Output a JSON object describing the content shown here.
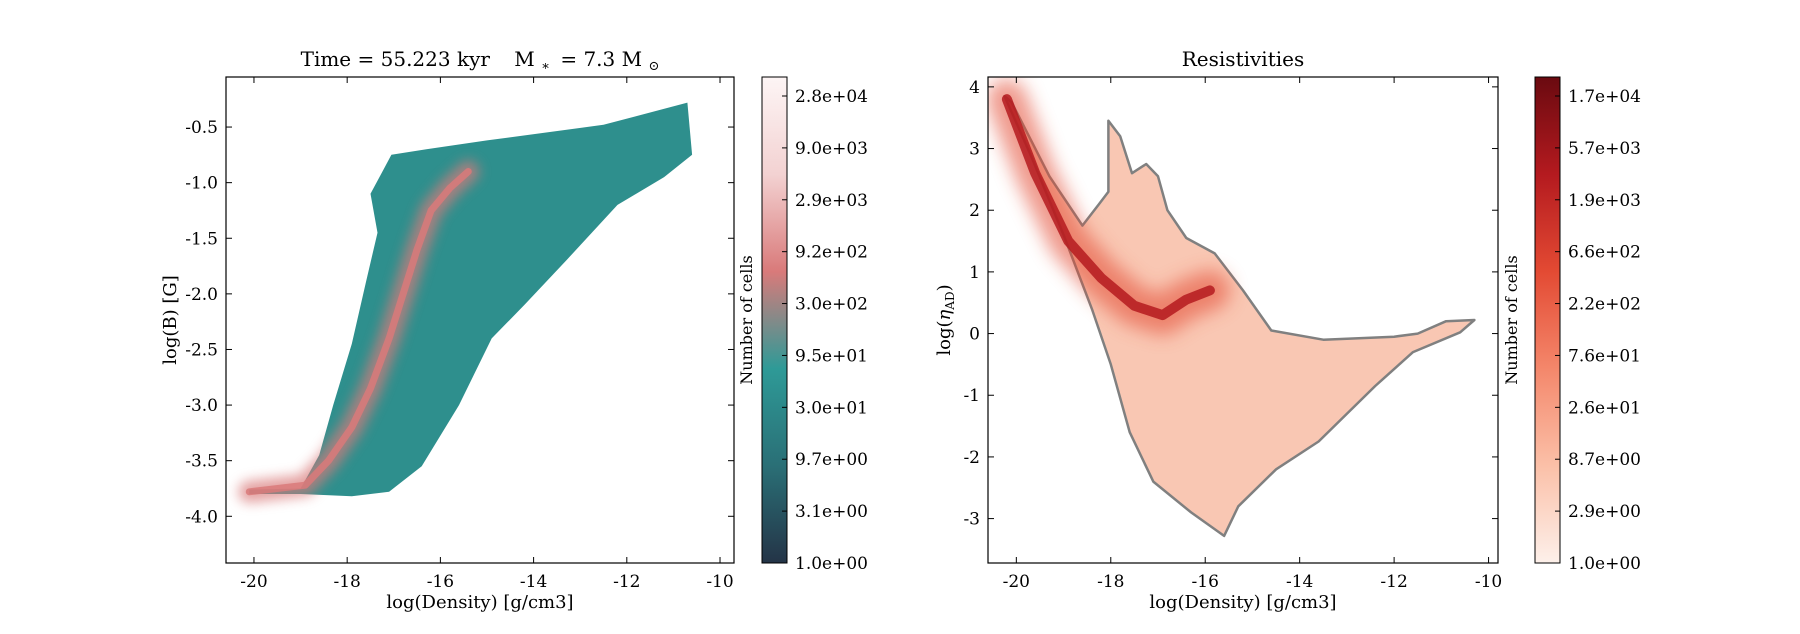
{
  "chart_data": [
    {
      "type": "heatmap",
      "title": "Time = 55.223 kyr    M$_*$ = 7.3 M$_\\odot$",
      "title_parts": {
        "prefix": "Time = 55.223 kyr",
        "mass_sym": "M",
        "mass_sub": "∗",
        "mass_value": "= 7.3 M",
        "mass_unit_sub": "⊙"
      },
      "xlabel": "log(Density) [g/cm3]",
      "ylabel": "log(B) [G]",
      "xlim": [
        -20.6,
        -9.7
      ],
      "ylim": [
        -4.42,
        -0.05
      ],
      "xticks": [
        -20,
        -18,
        -16,
        -14,
        -12,
        -10
      ],
      "yticks": [
        -4.0,
        -3.5,
        -3.0,
        -2.5,
        -2.0,
        -1.5,
        -1.0,
        -0.5
      ],
      "xtick_labels": [
        "-20",
        "-18",
        "-16",
        "-14",
        "-12",
        "-10"
      ],
      "ytick_labels": [
        "-4.0",
        "-3.5",
        "-3.0",
        "-2.5",
        "-2.0",
        "-1.5",
        "-1.0",
        "-0.5"
      ],
      "colormap": [
        "#243447",
        "#2a6f76",
        "#2e9a97",
        "#d97a7a",
        "#f3d2d2",
        "#fdf5f5"
      ],
      "base_color": "#2e8f8d",
      "colorbar": {
        "label": "Number of cells",
        "scale": "log",
        "range": [
          1,
          28000
        ],
        "tick_labels": [
          "1.0e+00",
          "3.1e+00",
          "9.7e+00",
          "3.0e+01",
          "9.5e+01",
          "3.0e+02",
          "9.2e+02",
          "2.9e+03",
          "9.0e+03",
          "2.8e+04"
        ]
      },
      "region_outline": [
        [
          -20.1,
          -3.76
        ],
        [
          -19.0,
          -3.75
        ],
        [
          -18.6,
          -3.45
        ],
        [
          -18.3,
          -3.0
        ],
        [
          -17.9,
          -2.45
        ],
        [
          -17.6,
          -1.9
        ],
        [
          -17.35,
          -1.45
        ],
        [
          -17.5,
          -1.1
        ],
        [
          -17.05,
          -0.75
        ],
        [
          -16.3,
          -0.7
        ],
        [
          -15.0,
          -0.62
        ],
        [
          -12.5,
          -0.48
        ],
        [
          -10.7,
          -0.28
        ],
        [
          -10.6,
          -0.75
        ],
        [
          -11.2,
          -0.95
        ],
        [
          -12.2,
          -1.2
        ],
        [
          -13.3,
          -1.7
        ],
        [
          -14.2,
          -2.1
        ],
        [
          -14.9,
          -2.4
        ],
        [
          -15.6,
          -3.0
        ],
        [
          -16.4,
          -3.55
        ],
        [
          -17.1,
          -3.78
        ],
        [
          -17.9,
          -3.82
        ],
        [
          -19.0,
          -3.8
        ],
        [
          -20.1,
          -3.8
        ]
      ],
      "ridge": [
        [
          -20.1,
          -3.78
        ],
        [
          -18.9,
          -3.72
        ],
        [
          -18.4,
          -3.5
        ],
        [
          -17.9,
          -3.2
        ],
        [
          -17.5,
          -2.85
        ],
        [
          -17.1,
          -2.4
        ],
        [
          -16.8,
          -2.0
        ],
        [
          -16.5,
          -1.6
        ],
        [
          -16.2,
          -1.25
        ],
        [
          -15.8,
          -1.05
        ],
        [
          -15.4,
          -0.9
        ]
      ]
    },
    {
      "type": "heatmap",
      "title": "Resistivities",
      "xlabel": "log(Density) [g/cm3]",
      "ylabel": "log(η_AD)",
      "ylabel_parts": {
        "prefix": "log(",
        "sym": "η",
        "sub": "AD",
        "suffix": ")"
      },
      "xlim": [
        -20.6,
        -9.8
      ],
      "ylim": [
        -3.72,
        4.16
      ],
      "xticks": [
        -20,
        -18,
        -16,
        -14,
        -12,
        -10
      ],
      "yticks": [
        -3,
        -2,
        -1,
        0,
        1,
        2,
        3,
        4
      ],
      "xtick_labels": [
        "-20",
        "-18",
        "-16",
        "-14",
        "-12",
        "-10"
      ],
      "ytick_labels": [
        "-3",
        "-2",
        "-1",
        "0",
        "1",
        "2",
        "3",
        "4"
      ],
      "colormap": [
        "#fdf0ea",
        "#fbc0a8",
        "#f4876b",
        "#e34a33",
        "#b41a1f",
        "#6a0a10"
      ],
      "base_color": "#f9c7b3",
      "contour_color": "#808080",
      "colorbar": {
        "label": "Number of cells",
        "scale": "log",
        "range": [
          1,
          17000
        ],
        "tick_labels": [
          "1.0e+00",
          "2.9e+00",
          "8.7e+00",
          "2.6e+01",
          "7.6e+01",
          "2.2e+02",
          "6.6e+02",
          "1.9e+03",
          "5.7e+03",
          "1.7e+04"
        ]
      },
      "region_outline": [
        [
          -20.25,
          3.85
        ],
        [
          -20.1,
          3.75
        ],
        [
          -19.3,
          2.55
        ],
        [
          -18.6,
          1.75
        ],
        [
          -18.25,
          2.1
        ],
        [
          -18.05,
          2.3
        ],
        [
          -18.05,
          3.45
        ],
        [
          -17.8,
          3.2
        ],
        [
          -17.55,
          2.6
        ],
        [
          -17.25,
          2.75
        ],
        [
          -17.0,
          2.55
        ],
        [
          -16.8,
          2.0
        ],
        [
          -16.4,
          1.55
        ],
        [
          -15.8,
          1.3
        ],
        [
          -15.2,
          0.7
        ],
        [
          -14.6,
          0.05
        ],
        [
          -13.5,
          -0.1
        ],
        [
          -12.0,
          -0.05
        ],
        [
          -11.5,
          0.0
        ],
        [
          -10.9,
          0.2
        ],
        [
          -10.3,
          0.22
        ],
        [
          -10.6,
          0.02
        ],
        [
          -11.6,
          -0.3
        ],
        [
          -12.4,
          -0.85
        ],
        [
          -13.6,
          -1.75
        ],
        [
          -14.5,
          -2.2
        ],
        [
          -15.3,
          -2.8
        ],
        [
          -15.6,
          -3.28
        ],
        [
          -16.3,
          -2.9
        ],
        [
          -17.1,
          -2.4
        ],
        [
          -17.6,
          -1.6
        ],
        [
          -18.0,
          -0.5
        ],
        [
          -18.4,
          0.4
        ],
        [
          -19.0,
          1.6
        ],
        [
          -19.7,
          2.9
        ],
        [
          -20.25,
          3.85
        ]
      ],
      "ridge": [
        [
          -20.2,
          3.8
        ],
        [
          -19.6,
          2.6
        ],
        [
          -18.9,
          1.5
        ],
        [
          -18.2,
          0.9
        ],
        [
          -17.5,
          0.45
        ],
        [
          -16.9,
          0.3
        ],
        [
          -16.4,
          0.55
        ],
        [
          -15.9,
          0.7
        ]
      ]
    }
  ]
}
